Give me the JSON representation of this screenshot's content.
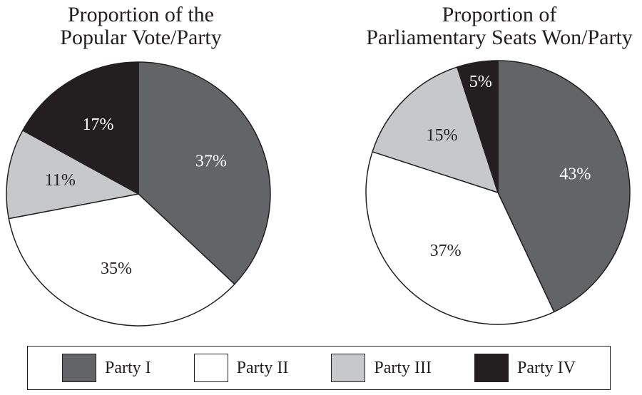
{
  "chart_data": [
    {
      "type": "pie",
      "title": [
        "Proportion of the",
        "Popular Vote/Party"
      ],
      "slices": [
        {
          "series": "Party I",
          "value": 37,
          "label": "37%"
        },
        {
          "series": "Party II",
          "value": 35,
          "label": "35%"
        },
        {
          "series": "Party III",
          "value": 11,
          "label": "11%"
        },
        {
          "series": "Party IV",
          "value": 17,
          "label": "17%"
        }
      ]
    },
    {
      "type": "pie",
      "title": [
        "Proportion of",
        "Parliamentary Seats Won/Party"
      ],
      "slices": [
        {
          "series": "Party I",
          "value": 43,
          "label": "43%"
        },
        {
          "series": "Party II",
          "value": 37,
          "label": "37%"
        },
        {
          "series": "Party III",
          "value": 15,
          "label": "15%"
        },
        {
          "series": "Party IV",
          "value": 5,
          "label": "5%"
        }
      ]
    }
  ],
  "legend": {
    "items": [
      {
        "label": "Party I",
        "color": "#636466"
      },
      {
        "label": "Party II",
        "color": "#ffffff"
      },
      {
        "label": "Party III",
        "color": "#c7c8ca"
      },
      {
        "label": "Party IV",
        "color": "#231f20"
      }
    ]
  }
}
